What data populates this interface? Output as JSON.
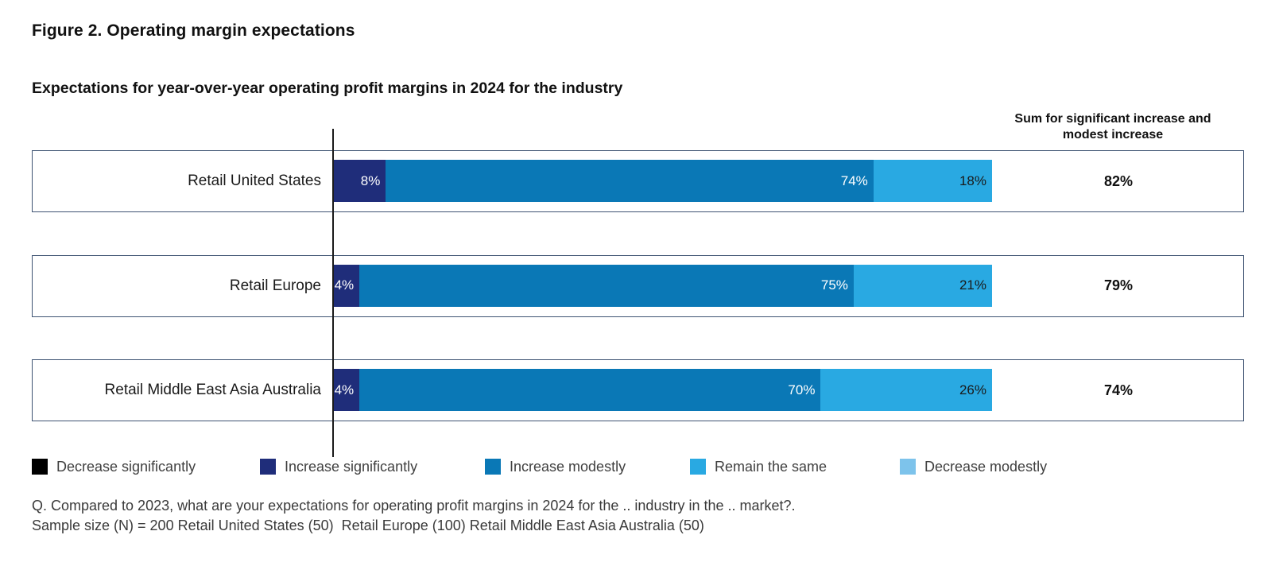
{
  "figure": {
    "title": "Figure 2. Operating margin expectations",
    "subtitle": "Expectations for year-over-year operating profit margins in 2024 for the industry",
    "sum_header": "Sum for significant increase and modest increase"
  },
  "chart_data": {
    "type": "bar",
    "orientation": "horizontal",
    "stacked": true,
    "grid": false,
    "xlim": [
      0,
      100
    ],
    "unit": "%",
    "categories": [
      "Retail United States",
      "Retail Europe",
      "Retail Middle East Asia Australia"
    ],
    "series": [
      {
        "name": "Decrease significantly",
        "color": "#000000",
        "label_color": "#ffffff",
        "values": [
          0,
          0,
          0
        ]
      },
      {
        "name": "Increase significantly",
        "color": "#1f2d7a",
        "label_color": "#ffffff",
        "values": [
          8,
          4,
          4
        ]
      },
      {
        "name": "Increase modestly",
        "color": "#0a78b6",
        "label_color": "#ffffff",
        "values": [
          74,
          75,
          70
        ]
      },
      {
        "name": "Remain the same",
        "color": "#29a9e2",
        "label_color": "#1a1a1a",
        "values": [
          18,
          21,
          26
        ]
      },
      {
        "name": "Decrease modestly",
        "color": "#7dc3eb",
        "label_color": "#1a1a1a",
        "values": [
          0,
          0,
          0
        ]
      }
    ],
    "sum_column": {
      "header": "Sum for significant increase and modest increase",
      "values": [
        "82%",
        "79%",
        "74%"
      ]
    },
    "legend_position": "bottom"
  },
  "layout_colors": {
    "row_border": "#3e5372",
    "axis_line": "#1a1a1a"
  },
  "footer": {
    "question": "Q. Compared to 2023, what are your expectations for operating profit margins in 2024 for the .. industry in the .. market?.",
    "sample": "Sample size (N) = 200 Retail United States (50)  Retail Europe (100) Retail Middle East Asia Australia (50)"
  }
}
